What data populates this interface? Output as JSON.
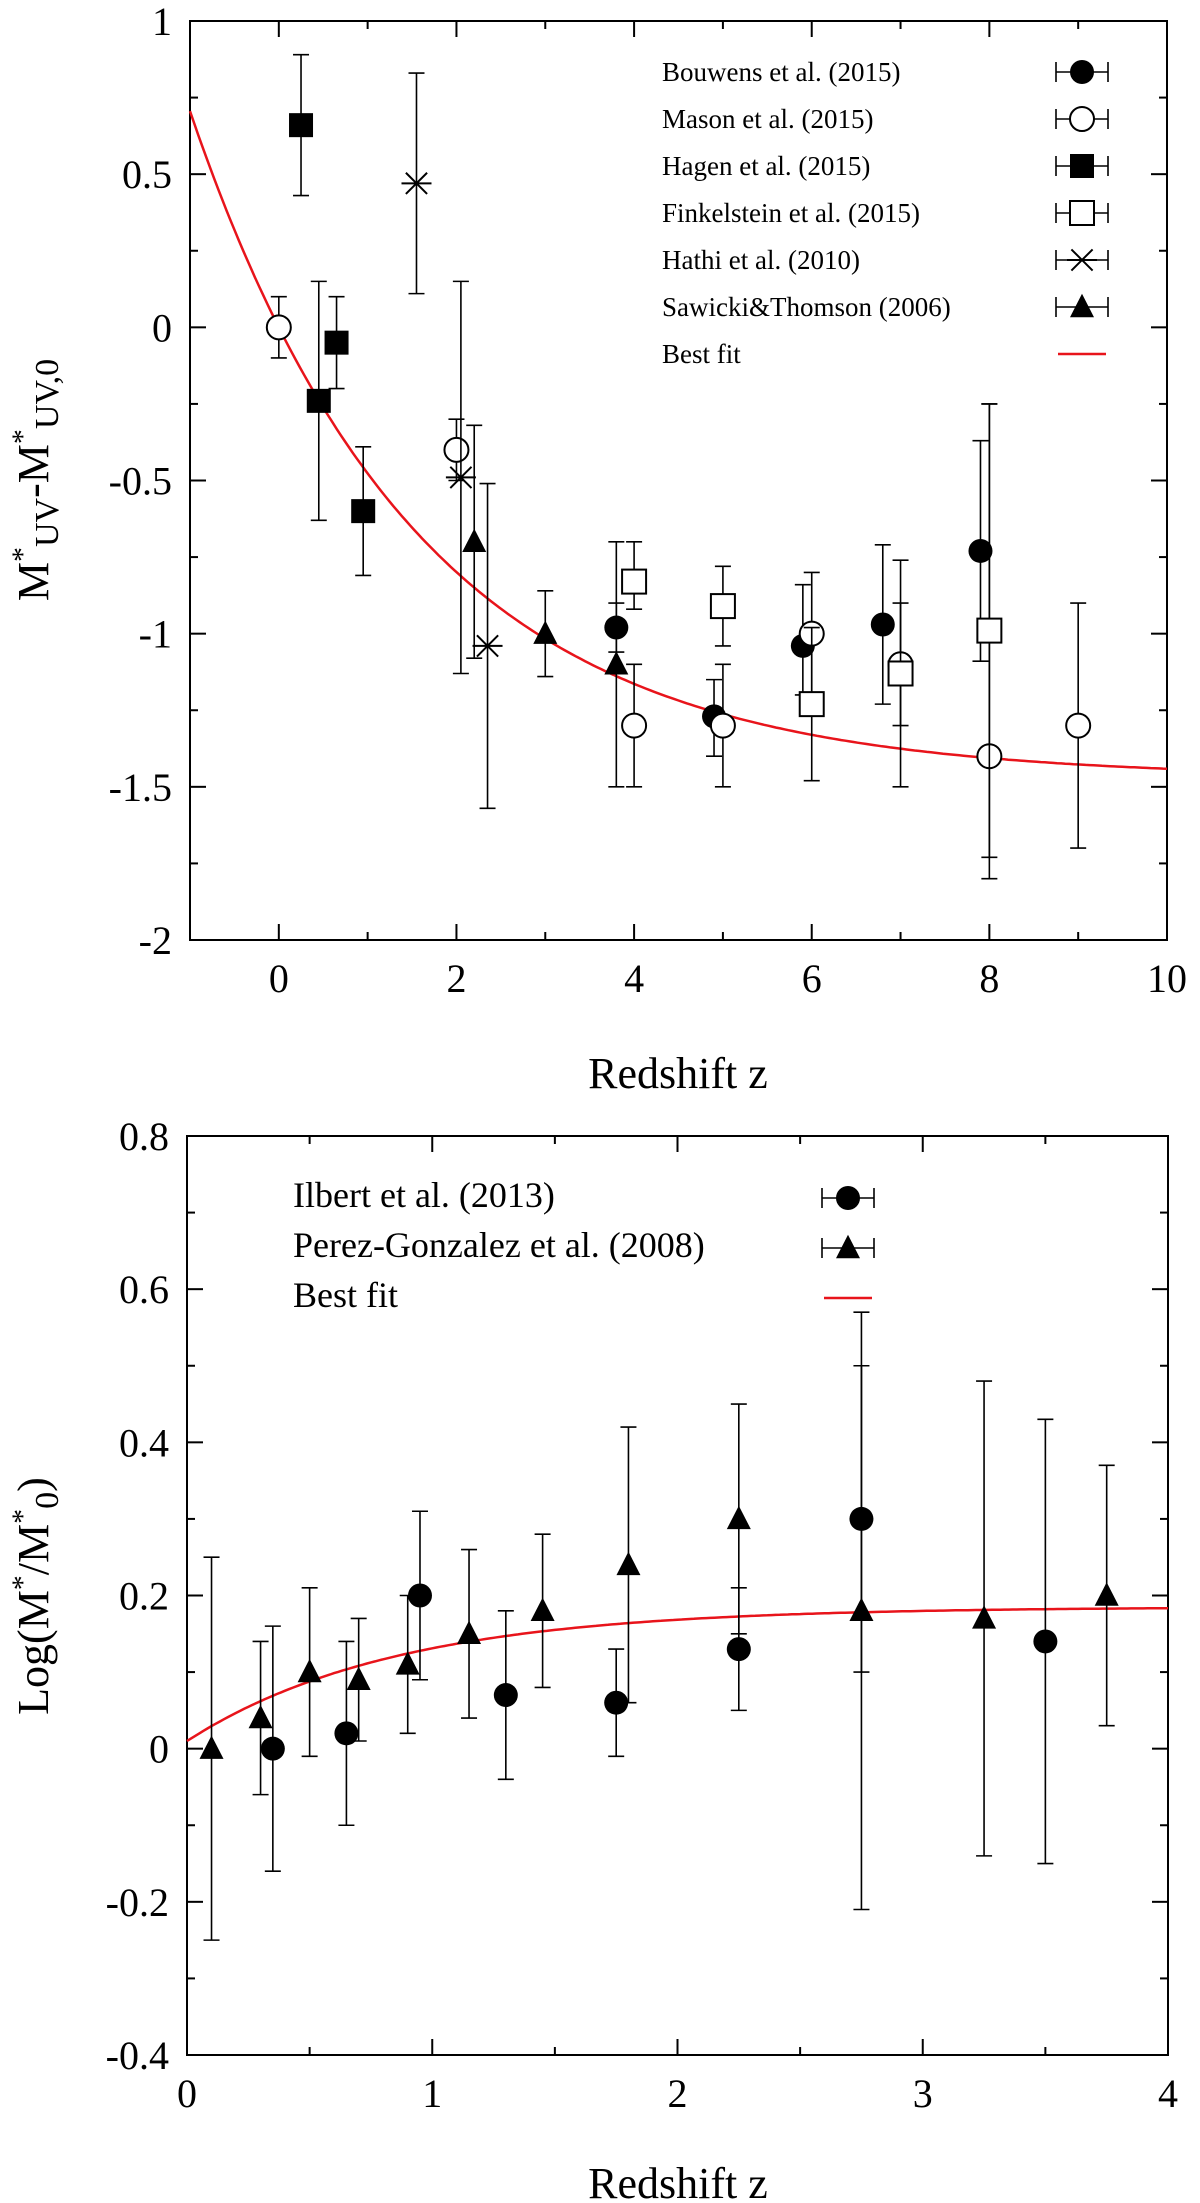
{
  "chart_data": [
    {
      "type": "scatter",
      "xlabel": "Redshift z",
      "ylabel": "M*UV-M*UV,0",
      "ylabel_main_a": "M",
      "ylabel_sub_a": "UV",
      "ylabel_main_b": "-M",
      "ylabel_sub_b": "UV,0",
      "xlim": [
        -1,
        10
      ],
      "ylim": [
        -2,
        1
      ],
      "xticks": [
        0,
        2,
        4,
        6,
        8,
        10
      ],
      "xtick_labels": [
        "0",
        "2",
        "4",
        "6",
        "8",
        "10"
      ],
      "yticks": [
        -2,
        -1.5,
        -1,
        -0.5,
        0,
        0.5,
        1
      ],
      "ytick_labels": [
        "-2",
        "-1.5",
        "-1",
        "-0.5",
        "0",
        "0.5",
        "1"
      ],
      "legend_position": "top-right",
      "series": [
        {
          "name": "Bouwens et al. (2015)",
          "marker": "filled-circle",
          "points": [
            [
              3.8,
              -0.98,
              -1.06,
              -0.9
            ],
            [
              4.9,
              -1.27,
              -1.4,
              -1.15
            ],
            [
              5.9,
              -1.04,
              -1.2,
              -0.84
            ],
            [
              6.8,
              -0.97,
              -1.23,
              -0.71
            ],
            [
              7.9,
              -0.73,
              -1.09,
              -0.37
            ]
          ]
        },
        {
          "name": "Mason et al. (2015)",
          "marker": "open-circle",
          "points": [
            [
              0,
              0,
              -0.1,
              0.1
            ],
            [
              2,
              -0.4,
              -0.5,
              -0.3
            ],
            [
              4,
              -1.3,
              -1.5,
              -1.1
            ],
            [
              5,
              -1.3,
              -1.5,
              -1.1
            ],
            [
              6,
              -1.0,
              -1.2,
              -0.8
            ],
            [
              7,
              -1.1,
              -1.3,
              -0.9
            ],
            [
              8,
              -1.4,
              -1.8,
              -0.25
            ],
            [
              9,
              -1.3,
              -1.7,
              -0.9
            ]
          ]
        },
        {
          "name": "Hagen et al. (2015)",
          "marker": "filled-square",
          "points": [
            [
              0.25,
              0.66,
              0.43,
              0.89
            ],
            [
              0.45,
              -0.24,
              -0.63,
              0.15
            ],
            [
              0.65,
              -0.05,
              -0.2,
              0.1
            ],
            [
              0.95,
              -0.6,
              -0.81,
              -0.39
            ]
          ]
        },
        {
          "name": "Finkelstein et al. (2015)",
          "marker": "open-square",
          "points": [
            [
              4,
              -0.83,
              -0.92,
              -0.7
            ],
            [
              5,
              -0.91,
              -1.04,
              -0.78
            ],
            [
              6,
              -1.23,
              -1.48,
              -0.98
            ],
            [
              7,
              -1.13,
              -1.5,
              -0.76
            ],
            [
              8,
              -0.99,
              -1.73,
              -0.25
            ]
          ]
        },
        {
          "name": "Hathi et al. (2010)",
          "marker": "asterisk",
          "points": [
            [
              1.55,
              0.47,
              0.11,
              0.83
            ],
            [
              2.05,
              -0.49,
              -1.13,
              0.15
            ],
            [
              2.35,
              -1.04,
              -1.57,
              -0.51
            ]
          ]
        },
        {
          "name": "Sawicki&Thomson (2006)",
          "marker": "filled-triangle",
          "points": [
            [
              2.2,
              -0.7,
              -1.08,
              -0.32
            ],
            [
              3.0,
              -1.0,
              -1.14,
              -0.86
            ],
            [
              3.8,
              -1.1,
              -1.5,
              -0.7
            ]
          ]
        },
        {
          "name": "Best fit",
          "marker": "line",
          "color": "#e8141b",
          "curve": "exp",
          "params": {
            "a": -1.47,
            "b": 1.47,
            "tau": 2.55
          }
        }
      ]
    },
    {
      "type": "scatter",
      "xlabel": "Redshift z",
      "ylabel": "Log(M*/M*0)",
      "ylabel_prefix": "Log(M",
      "ylabel_mid": "/M",
      "ylabel_sub": "0",
      "ylabel_suffix": ")",
      "xlim": [
        0,
        4
      ],
      "ylim": [
        -0.4,
        0.8
      ],
      "xticks": [
        0,
        1,
        2,
        3,
        4
      ],
      "xtick_labels": [
        "0",
        "1",
        "2",
        "3",
        "4"
      ],
      "yticks": [
        -0.4,
        -0.2,
        0,
        0.2,
        0.4,
        0.6,
        0.8
      ],
      "ytick_labels": [
        "-0.4",
        "-0.2",
        "0",
        "0.2",
        "0.4",
        "0.6",
        "0.8"
      ],
      "legend_position": "top-left",
      "series": [
        {
          "name": "Ilbert et al. (2013)",
          "marker": "filled-circle",
          "points": [
            [
              0.35,
              0.0,
              -0.16,
              0.16
            ],
            [
              0.65,
              0.02,
              -0.1,
              0.14
            ],
            [
              0.95,
              0.2,
              0.09,
              0.31
            ],
            [
              1.3,
              0.07,
              -0.04,
              0.18
            ],
            [
              1.75,
              0.06,
              -0.01,
              0.13
            ],
            [
              2.25,
              0.13,
              0.05,
              0.21
            ],
            [
              2.75,
              0.3,
              0.1,
              0.5
            ],
            [
              3.5,
              0.14,
              -0.15,
              0.43
            ]
          ]
        },
        {
          "name": "Perez-Gonzalez et al. (2008)",
          "marker": "filled-triangle",
          "points": [
            [
              0.1,
              0.0,
              -0.25,
              0.25
            ],
            [
              0.3,
              0.04,
              -0.06,
              0.14
            ],
            [
              0.5,
              0.1,
              -0.01,
              0.21
            ],
            [
              0.7,
              0.09,
              0.01,
              0.17
            ],
            [
              0.9,
              0.11,
              0.02,
              0.2
            ],
            [
              1.15,
              0.15,
              0.04,
              0.26
            ],
            [
              1.45,
              0.18,
              0.08,
              0.28
            ],
            [
              1.8,
              0.24,
              0.06,
              0.42
            ],
            [
              2.25,
              0.3,
              0.15,
              0.45
            ],
            [
              2.75,
              0.18,
              -0.21,
              0.57
            ],
            [
              3.25,
              0.17,
              -0.14,
              0.48
            ],
            [
              3.75,
              0.2,
              0.03,
              0.37
            ]
          ]
        },
        {
          "name": "Best fit",
          "marker": "line",
          "color": "#e8141b",
          "curve": "exp",
          "params": {
            "a": 0.185,
            "b": -0.175,
            "tau": 0.85
          }
        }
      ]
    }
  ]
}
